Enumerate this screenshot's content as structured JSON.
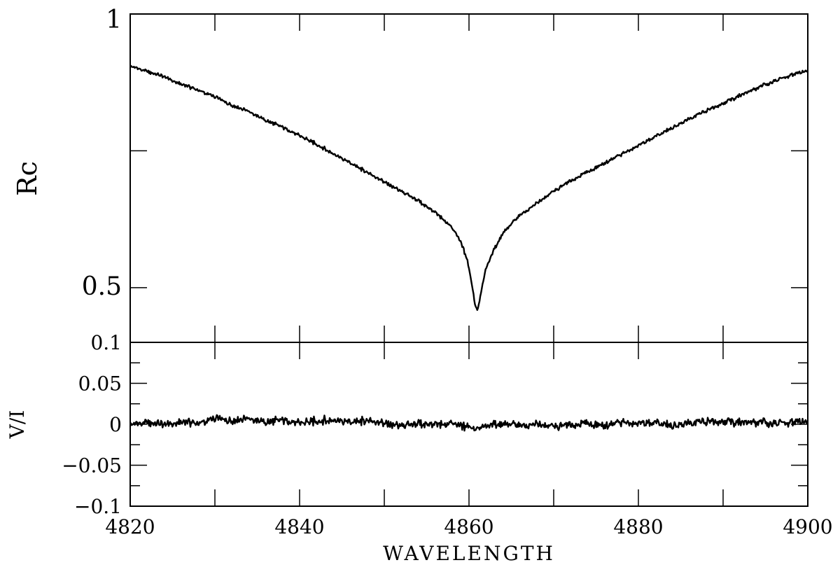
{
  "chart_data": [
    {
      "type": "line",
      "panel": "top",
      "ylabel": "Rc",
      "xlabel": "",
      "xlim": [
        4820,
        4900
      ],
      "ylim": [
        0.4,
        1.0
      ],
      "yticks_labeled": [
        {
          "value": 1.0,
          "label": "1"
        },
        {
          "value": 0.5,
          "label": "0.5"
        }
      ],
      "yticks_minor": [
        0.75
      ],
      "xticks": [
        4820,
        4830,
        4840,
        4850,
        4860,
        4870,
        4880,
        4890,
        4900
      ],
      "series": [
        {
          "x": [
            4820.0,
            4822.0,
            4824.0,
            4826.0,
            4828.0,
            4830.0,
            4832.0,
            4834.0,
            4836.0,
            4838.0,
            4840.0,
            4842.0,
            4844.0,
            4846.0,
            4848.0,
            4850.0,
            4852.0,
            4854.0,
            4856.0,
            4857.5,
            4858.5,
            4859.2,
            4859.8,
            4860.3,
            4860.7,
            4861.0,
            4861.4,
            4862.0,
            4863.0,
            4864.0,
            4866.0,
            4868.0,
            4870.0,
            4872.0,
            4874.0,
            4876.0,
            4878.0,
            4880.0,
            4882.0,
            4884.0,
            4886.0,
            4888.0,
            4890.0,
            4892.0,
            4894.0,
            4896.0,
            4898.0,
            4900.0
          ],
          "y": [
            0.905,
            0.895,
            0.885,
            0.872,
            0.861,
            0.848,
            0.833,
            0.822,
            0.806,
            0.793,
            0.778,
            0.762,
            0.745,
            0.728,
            0.71,
            0.693,
            0.676,
            0.659,
            0.637,
            0.617,
            0.598,
            0.577,
            0.549,
            0.51,
            0.472,
            0.458,
            0.49,
            0.535,
            0.57,
            0.6,
            0.632,
            0.654,
            0.676,
            0.695,
            0.712,
            0.728,
            0.744,
            0.759,
            0.776,
            0.792,
            0.808,
            0.823,
            0.837,
            0.851,
            0.865,
            0.877,
            0.888,
            0.897
          ]
        }
      ]
    },
    {
      "type": "line",
      "panel": "bottom",
      "ylabel": "V/I",
      "xlabel": "WAVELENGTH",
      "xlim": [
        4820,
        4900
      ],
      "ylim": [
        -0.1,
        0.1
      ],
      "yticks_labeled": [
        {
          "value": 0.1,
          "label": "0.1"
        },
        {
          "value": 0.05,
          "label": "0.05"
        },
        {
          "value": 0,
          "label": "0"
        },
        {
          "value": -0.05,
          "label": "−0.05"
        },
        {
          "value": -0.1,
          "label": "−0.1"
        }
      ],
      "yticks_minor": [
        0.075,
        0.025,
        -0.025,
        -0.075
      ],
      "xticks": [
        4820,
        4830,
        4840,
        4850,
        4860,
        4870,
        4880,
        4890,
        4900
      ],
      "xtick_labels": [
        "4820",
        "4840",
        "4860",
        "4880",
        "4900"
      ],
      "series": [
        {
          "x": [
            4820,
            4822,
            4824,
            4826,
            4828,
            4830,
            4832,
            4834,
            4836,
            4838,
            4840,
            4842,
            4844,
            4846,
            4848,
            4850,
            4852,
            4854,
            4856,
            4858,
            4860,
            4862,
            4864,
            4866,
            4868,
            4870,
            4872,
            4874,
            4876,
            4878,
            4880,
            4882,
            4884,
            4886,
            4888,
            4890,
            4892,
            4894,
            4896,
            4898,
            4900
          ],
          "y": [
            0.0,
            0.002,
            -0.001,
            0.003,
            0.001,
            0.006,
            0.004,
            0.007,
            0.003,
            0.005,
            0.002,
            0.004,
            0.006,
            0.003,
            0.004,
            0.001,
            -0.002,
            0.001,
            -0.001,
            0.0,
            -0.004,
            -0.003,
            0.001,
            -0.002,
            0.0,
            -0.003,
            -0.001,
            0.002,
            -0.001,
            0.003,
            0.0,
            0.002,
            -0.002,
            0.001,
            0.003,
            0.004,
            0.002,
            0.003,
            0.001,
            0.002,
            0.004
          ]
        }
      ]
    }
  ]
}
